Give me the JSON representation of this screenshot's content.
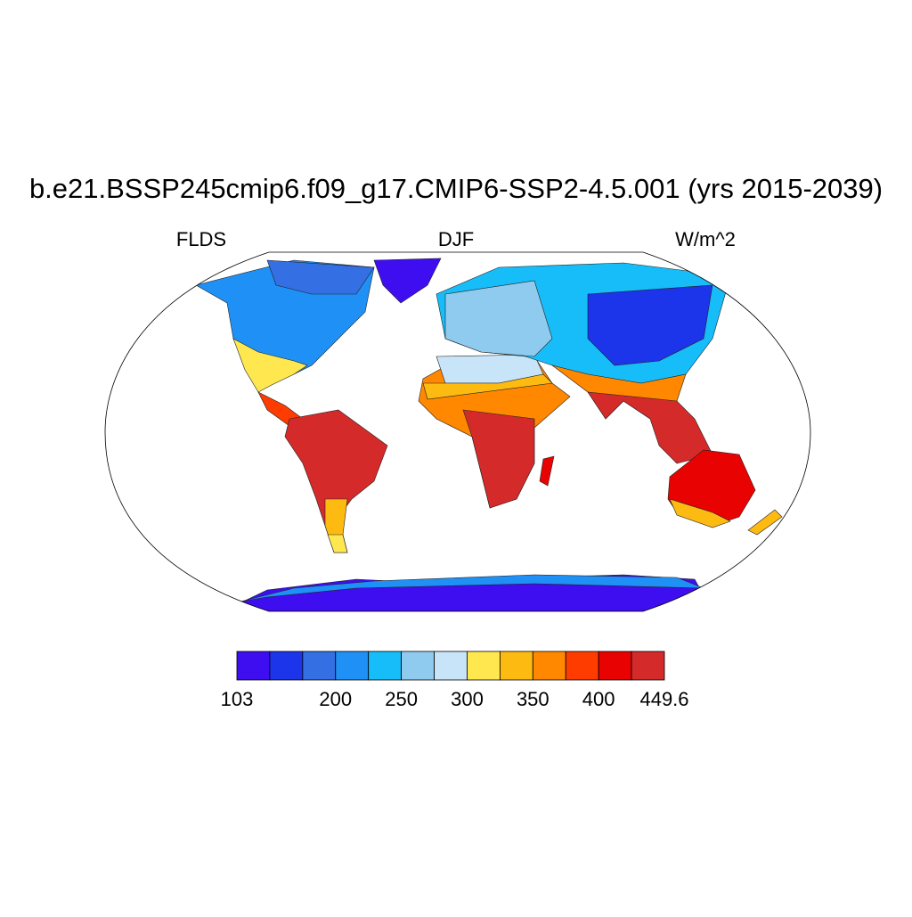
{
  "title": "b.e21.BSSP245cmip6.f09_g17.CMIP6-SSP2-4.5.001 (yrs 2015-2039)",
  "left_label": "FLDS",
  "center_label": "DJF",
  "right_label": "W/m^2",
  "colorbar": {
    "colors": [
      "#3f0ef0",
      "#1c34ea",
      "#346fe3",
      "#1f90f5",
      "#16bdf8",
      "#8fcbef",
      "#c8e4f8",
      "#ffe750",
      "#fdbb12",
      "#ff8800",
      "#ff3c00",
      "#e80202",
      "#d52a2a"
    ],
    "edge_labels": [
      103,
      null,
      null,
      200,
      null,
      250,
      null,
      300,
      null,
      350,
      null,
      400,
      null,
      449.6
    ]
  }
}
